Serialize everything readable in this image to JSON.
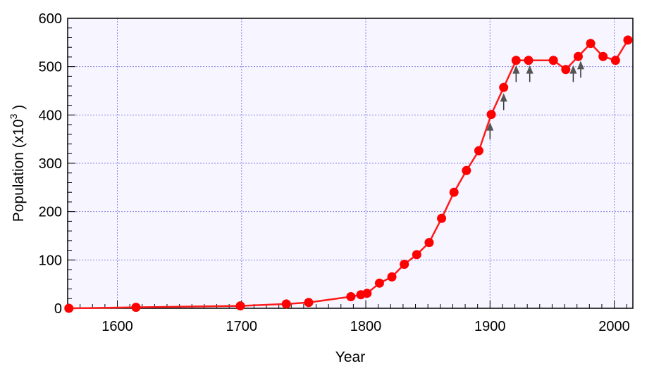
{
  "chart_data": {
    "type": "line",
    "xlabel": "Year",
    "ylabel": "Population (x10",
    "ylabel_superscript": "3",
    "ylabel_close": " )",
    "xlim": [
      1560,
      2015
    ],
    "ylim": [
      0,
      600
    ],
    "xticks": [
      1600,
      1700,
      1800,
      1900,
      2000
    ],
    "yticks": [
      0,
      100,
      200,
      300,
      400,
      500,
      600
    ],
    "grid": true,
    "legend": "none",
    "colors": {
      "line": "#ff1a1a",
      "marker": "#ff0000",
      "arrow": "#555555",
      "grid": "#8888dd",
      "background": "#f7f5ff"
    },
    "series": [
      {
        "x": [
          1561,
          1615,
          1699,
          1736,
          1754,
          1788,
          1796,
          1801,
          1811,
          1821,
          1831,
          1841,
          1851,
          1861,
          1871,
          1881,
          1891,
          1901,
          1911,
          1921,
          1931,
          1951,
          1961,
          1971,
          1981,
          1991,
          2001,
          2011
        ],
        "y": [
          0,
          2,
          5,
          9,
          12,
          24,
          28,
          31,
          52,
          65,
          91,
          111,
          136,
          186,
          240,
          285,
          326,
          401,
          457,
          513,
          513,
          513,
          494,
          521,
          548,
          521,
          513,
          555
        ]
      }
    ],
    "annotations": {
      "type": "arrow-up",
      "x": [
        1900,
        1911,
        1921,
        1932,
        1967,
        1973
      ],
      "y_top": [
        385,
        445,
        503,
        503,
        503,
        512
      ]
    }
  }
}
